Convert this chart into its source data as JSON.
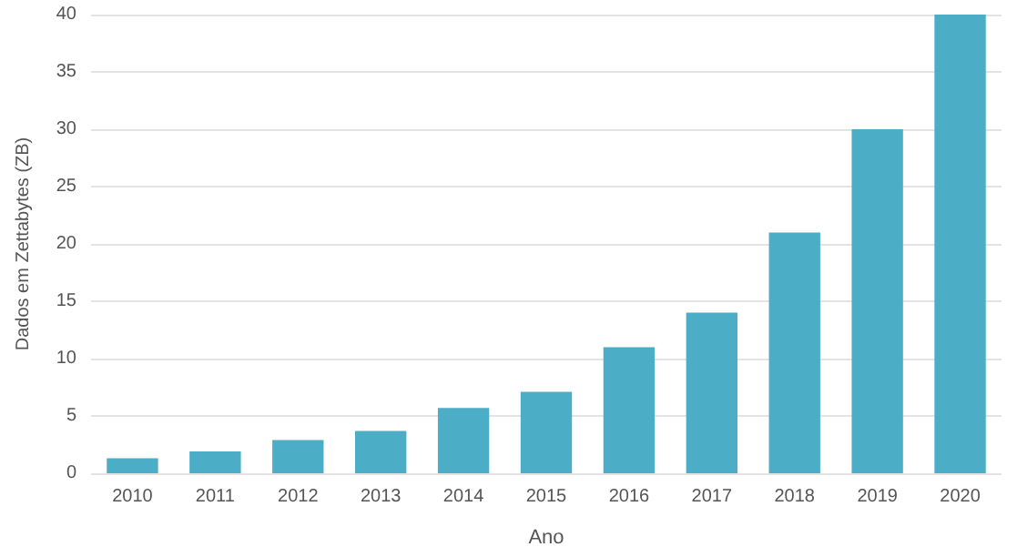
{
  "chart_data": {
    "type": "bar",
    "xlabel": "Ano",
    "ylabel": "Dados em Zettabytes (ZB)",
    "categories": [
      "2010",
      "2011",
      "2012",
      "2013",
      "2014",
      "2015",
      "2016",
      "2017",
      "2018",
      "2019",
      "2020"
    ],
    "values": [
      1.3,
      1.9,
      2.9,
      3.7,
      5.7,
      7.1,
      11,
      14,
      21,
      30,
      40
    ],
    "color": "#4badc6",
    "ylim": [
      0,
      40
    ],
    "yticks": [
      0,
      5,
      10,
      15,
      20,
      25,
      30,
      35,
      40
    ],
    "grid": "y"
  }
}
